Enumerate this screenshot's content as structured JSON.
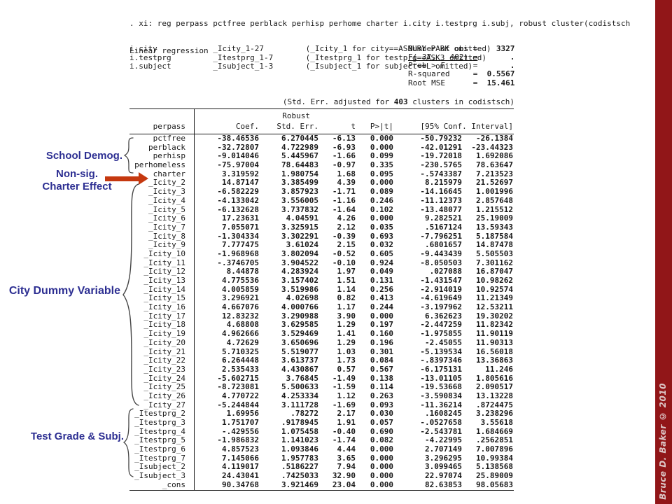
{
  "command": {
    "line1": ". xi: reg perpass pctfree perblack perhisp perhome charter i.city i.testprg i.subj, robust cluster(codistsch",
    "factor_lines": [
      "i.city            _Icity_1-27         (_Icity_1 for city==ASBURY PARK omitted)",
      "i.testprg         _Itestprg_1-7       (_Itestprg_1 for testprg==ASK3 omitted)",
      "i.subject         _Isubject_1-3       (_Isubject_1 for subject==L omitted)"
    ]
  },
  "model": {
    "title": "Linear regression",
    "stats": [
      {
        "label": "Number of obs =",
        "value": "3327",
        "underline": false
      },
      {
        "label": "F( 37,   402) =",
        "value": ".",
        "underline": true
      },
      {
        "label": "Prob > F      =",
        "value": ".",
        "underline": false
      },
      {
        "label": "R-squared     =",
        "value": "0.5567",
        "underline": false
      },
      {
        "label": "Root MSE      =",
        "value": "15.461",
        "underline": false
      }
    ],
    "cluster_note_pre": "(Std. Err. adjusted for ",
    "cluster_n": "403",
    "cluster_note_post": " clusters in codistsch)"
  },
  "table": {
    "depvar": "perpass",
    "robust_label": "Robust",
    "headers": {
      "coef": "Coef.",
      "stderr": "Std. Err.",
      "t": "t",
      "p": "P>|t|",
      "ci": "[95% Conf. Interval]"
    },
    "rows": [
      [
        "pctfree",
        "-38.46536",
        "6.270445",
        "-6.13",
        "0.000",
        "-50.79232",
        "-26.1384"
      ],
      [
        "perblack",
        "-32.72807",
        "4.722989",
        "-6.93",
        "0.000",
        "-42.01291",
        "-23.44323"
      ],
      [
        "perhisp",
        "-9.014046",
        "5.445967",
        "-1.66",
        "0.099",
        "-19.72018",
        "1.692086"
      ],
      [
        "perhomeless",
        "-75.97004",
        "78.64483",
        "-0.97",
        "0.335",
        "-230.5765",
        "78.63647"
      ],
      [
        "charter",
        "3.319592",
        "1.980754",
        "1.68",
        "0.095",
        "-.5743387",
        "7.213523"
      ],
      [
        "_Icity_2",
        "14.87147",
        "3.385499",
        "4.39",
        "0.000",
        "8.215979",
        "21.52697"
      ],
      [
        "_Icity_3",
        "-6.582229",
        "3.857923",
        "-1.71",
        "0.089",
        "-14.16645",
        "1.001996"
      ],
      [
        "_Icity_4",
        "-4.133042",
        "3.556005",
        "-1.16",
        "0.246",
        "-11.12373",
        "2.857648"
      ],
      [
        "_Icity_5",
        "-6.132628",
        "3.737832",
        "-1.64",
        "0.102",
        "-13.48077",
        "1.215512"
      ],
      [
        "_Icity_6",
        "17.23631",
        "4.04591",
        "4.26",
        "0.000",
        "9.282521",
        "25.19009"
      ],
      [
        "_Icity_7",
        "7.055071",
        "3.325915",
        "2.12",
        "0.035",
        ".5167124",
        "13.59343"
      ],
      [
        "_Icity_8",
        "-1.304334",
        "3.302291",
        "-0.39",
        "0.693",
        "-7.796251",
        "5.187584"
      ],
      [
        "_Icity_9",
        "7.777475",
        "3.61024",
        "2.15",
        "0.032",
        ".6801657",
        "14.87478"
      ],
      [
        "_Icity_10",
        "-1.968968",
        "3.802094",
        "-0.52",
        "0.605",
        "-9.443439",
        "5.505503"
      ],
      [
        "_Icity_11",
        "-.3746705",
        "3.904522",
        "-0.10",
        "0.924",
        "-8.050503",
        "7.301162"
      ],
      [
        "_Icity_12",
        "8.44878",
        "4.283924",
        "1.97",
        "0.049",
        ".027088",
        "16.87047"
      ],
      [
        "_Icity_13",
        "4.775536",
        "3.157402",
        "1.51",
        "0.131",
        "-1.431547",
        "10.98262"
      ],
      [
        "_Icity_14",
        "4.005859",
        "3.519986",
        "1.14",
        "0.256",
        "-2.914019",
        "10.92574"
      ],
      [
        "_Icity_15",
        "3.296921",
        "4.02698",
        "0.82",
        "0.413",
        "-4.619649",
        "11.21349"
      ],
      [
        "_Icity_16",
        "4.667076",
        "4.000766",
        "1.17",
        "0.244",
        "-3.197962",
        "12.53211"
      ],
      [
        "_Icity_17",
        "12.83232",
        "3.290988",
        "3.90",
        "0.000",
        "6.362623",
        "19.30202"
      ],
      [
        "_Icity_18",
        "4.68808",
        "3.629585",
        "1.29",
        "0.197",
        "-2.447259",
        "11.82342"
      ],
      [
        "_Icity_19",
        "4.962666",
        "3.529469",
        "1.41",
        "0.160",
        "-1.975855",
        "11.90119"
      ],
      [
        "_Icity_20",
        "4.72629",
        "3.650696",
        "1.29",
        "0.196",
        "-2.45055",
        "11.90313"
      ],
      [
        "_Icity_21",
        "5.710325",
        "5.519077",
        "1.03",
        "0.301",
        "-5.139534",
        "16.56018"
      ],
      [
        "_Icity_22",
        "6.264448",
        "3.613737",
        "1.73",
        "0.084",
        "-.8397346",
        "13.36863"
      ],
      [
        "_Icity_23",
        "2.535433",
        "4.430867",
        "0.57",
        "0.567",
        "-6.175131",
        "11.246"
      ],
      [
        "_Icity_24",
        "-5.602715",
        "3.76845",
        "-1.49",
        "0.138",
        "-13.01105",
        "1.805616"
      ],
      [
        "_Icity_25",
        "-8.723081",
        "5.500633",
        "-1.59",
        "0.114",
        "-19.53668",
        "2.090517"
      ],
      [
        "_Icity_26",
        "4.770722",
        "4.253334",
        "1.12",
        "0.263",
        "-3.590834",
        "13.13228"
      ],
      [
        "_Icity_27",
        "-5.244844",
        "3.111728",
        "-1.69",
        "0.093",
        "-11.36214",
        ".8724475"
      ],
      [
        "_Itestprg_2",
        "1.69956",
        ".78272",
        "2.17",
        "0.030",
        ".1608245",
        "3.238296"
      ],
      [
        "_Itestprg_3",
        "1.751707",
        ".9178945",
        "1.91",
        "0.057",
        "-.0527658",
        "3.55618"
      ],
      [
        "_Itestprg_4",
        "-.429556",
        "1.075458",
        "-0.40",
        "0.690",
        "-2.543781",
        "1.684669"
      ],
      [
        "_Itestprg_5",
        "-1.986832",
        "1.141023",
        "-1.74",
        "0.082",
        "-4.22995",
        ".2562851"
      ],
      [
        "_Itestprg_6",
        "4.857523",
        "1.093846",
        "4.44",
        "0.000",
        "2.707149",
        "7.007896"
      ],
      [
        "_Itestprg_7",
        "7.145066",
        "1.957783",
        "3.65",
        "0.000",
        "3.296295",
        "10.99384"
      ],
      [
        "_Isubject_2",
        "4.119017",
        ".5186227",
        "7.94",
        "0.000",
        "3.099465",
        "5.138568"
      ],
      [
        "_Isubject_3",
        "24.43041",
        ".7425033",
        "32.90",
        "0.000",
        "22.97074",
        "25.89009"
      ],
      [
        "_cons",
        "90.34768",
        "3.921469",
        "23.04",
        "0.000",
        "82.63853",
        "98.05683"
      ]
    ]
  },
  "annotations": {
    "school_demog": "School Demog.",
    "nonsig_line1": "Non-sig.",
    "nonsig_line2": "Charter Effect",
    "city_dummy": "City Dummy Variable",
    "test_grade": "Test Grade & Subj."
  },
  "colors": {
    "annotation_navy": "#2d2f92",
    "arrow_red": "#c5380f",
    "sidebar_maroon": "#911618"
  },
  "watermark": "Bruce D. Baker © 2010"
}
